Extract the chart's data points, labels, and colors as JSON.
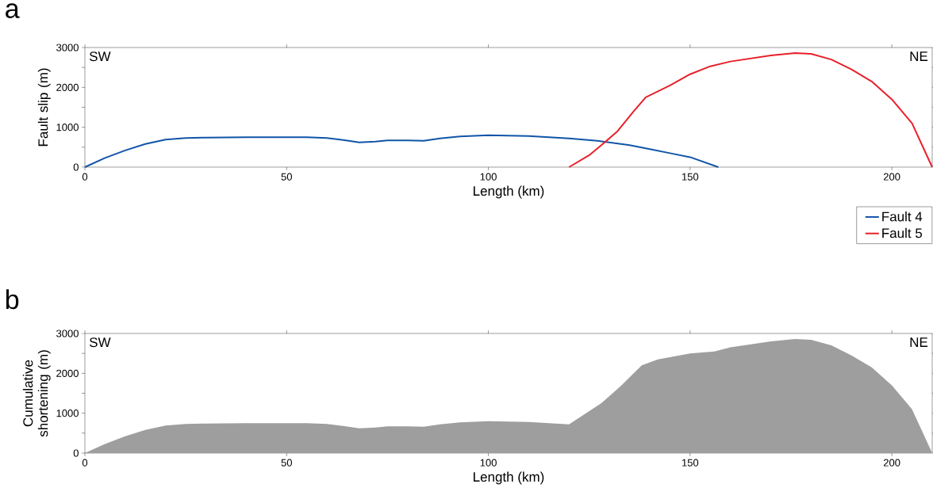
{
  "chart_data": [
    {
      "type": "line",
      "title": "a",
      "xlabel": "Length (km)",
      "ylabel": "Fault slip (m)",
      "xlim": [
        0,
        210
      ],
      "xticks": [
        0,
        50,
        100,
        150,
        200
      ],
      "ylim": [
        0,
        3000
      ],
      "yticks": [
        0,
        {
          "value": 500,
          "label": null
        },
        1000,
        {
          "value": 1500,
          "label": null
        },
        2000,
        {
          "value": 2500,
          "label": null
        },
        3000
      ],
      "legend": "bottom right",
      "annotations": [
        "SW",
        "NE"
      ],
      "series": [
        {
          "name": "Fault 4",
          "color": "#1155a8",
          "x": [
            0,
            5,
            10,
            15,
            20,
            25,
            30,
            40,
            50,
            55,
            60,
            64,
            68,
            72,
            75,
            80,
            84,
            88,
            93,
            100,
            110,
            120,
            127,
            135,
            140,
            145,
            150,
            157
          ],
          "values": [
            0,
            230,
            420,
            580,
            690,
            730,
            740,
            750,
            750,
            750,
            730,
            680,
            620,
            640,
            670,
            670,
            660,
            720,
            770,
            800,
            780,
            720,
            660,
            550,
            450,
            350,
            250,
            0
          ]
        },
        {
          "name": "Fault 5",
          "color": "#e8202a",
          "x": [
            120,
            125,
            128,
            132,
            136,
            139,
            145,
            150,
            155,
            160,
            170,
            176,
            180,
            185,
            190,
            195,
            200,
            205,
            210
          ],
          "values": [
            0,
            300,
            550,
            900,
            1400,
            1750,
            2050,
            2330,
            2530,
            2650,
            2800,
            2860,
            2840,
            2700,
            2450,
            2150,
            1700,
            1100,
            0
          ]
        }
      ]
    },
    {
      "type": "area",
      "title": "b",
      "xlabel": "Length (km)",
      "ylabel": "Cumulative shortening (m)",
      "xlim": [
        0,
        210
      ],
      "xticks": [
        0,
        50,
        100,
        150,
        200
      ],
      "ylim": [
        0,
        3000
      ],
      "yticks": [
        0,
        {
          "value": 500,
          "label": null
        },
        1000,
        {
          "value": 1500,
          "label": null
        },
        2000,
        {
          "value": 2500,
          "label": null
        },
        3000
      ],
      "annotations": [
        "SW",
        "NE"
      ],
      "series": [
        {
          "color": "#9e9e9e",
          "x": [
            0,
            5,
            10,
            15,
            20,
            25,
            30,
            40,
            50,
            55,
            60,
            64,
            68,
            72,
            75,
            80,
            84,
            88,
            93,
            100,
            110,
            120,
            128,
            133,
            138,
            142,
            150,
            156,
            160,
            170,
            176,
            180,
            185,
            190,
            195,
            200,
            205,
            210
          ],
          "values": [
            0,
            230,
            420,
            580,
            690,
            730,
            740,
            750,
            750,
            750,
            730,
            680,
            620,
            640,
            670,
            670,
            660,
            720,
            770,
            800,
            780,
            720,
            1250,
            1700,
            2200,
            2350,
            2500,
            2550,
            2650,
            2800,
            2860,
            2840,
            2700,
            2450,
            2150,
            1700,
            1100,
            0
          ]
        }
      ]
    }
  ]
}
